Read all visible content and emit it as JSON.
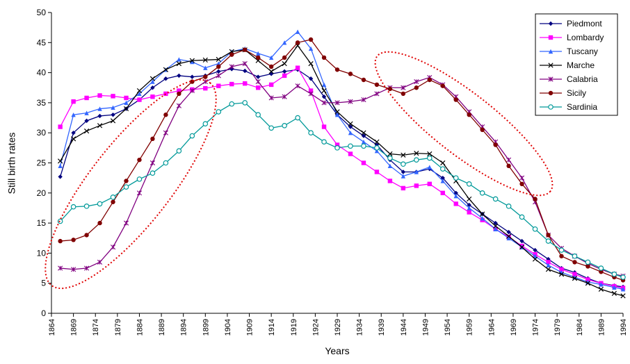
{
  "chart_data": {
    "type": "line",
    "x_label": "Years",
    "y_label": "Still birth rates",
    "x": [
      1866,
      1869,
      1872,
      1875,
      1878,
      1881,
      1884,
      1887,
      1890,
      1893,
      1896,
      1899,
      1902,
      1905,
      1908,
      1911,
      1914,
      1917,
      1920,
      1923,
      1926,
      1929,
      1932,
      1935,
      1938,
      1941,
      1944,
      1947,
      1950,
      1953,
      1956,
      1959,
      1962,
      1965,
      1968,
      1971,
      1974,
      1977,
      1980,
      1983,
      1986,
      1989,
      1992,
      1994
    ],
    "series": [
      {
        "name": "Piedmont",
        "color": "#000080",
        "marker": "diamond",
        "values": [
          22.7,
          30,
          32,
          32.8,
          33,
          34,
          35.5,
          37.5,
          39,
          39.5,
          39.3,
          39.5,
          40.2,
          40.6,
          40.3,
          39.3,
          39.8,
          40.2,
          40.5,
          39,
          36,
          33,
          31,
          29.5,
          28,
          25.5,
          23.5,
          23.5,
          24,
          22.5,
          20,
          18,
          16.5,
          15,
          13.5,
          12,
          10.5,
          9,
          7.5,
          6.8,
          5.8,
          5,
          4.6,
          4.4
        ]
      },
      {
        "name": "Lombardy",
        "color": "#ff00ff",
        "marker": "square",
        "values": [
          31,
          35.2,
          35.8,
          36.2,
          36.1,
          35.8,
          35.5,
          36,
          36.5,
          37,
          37.2,
          37.4,
          37.8,
          38.1,
          38.2,
          37.5,
          38,
          39.5,
          40.8,
          37,
          31,
          28,
          26.5,
          25,
          23.5,
          22,
          20.8,
          21.2,
          21.5,
          20,
          18.2,
          16.8,
          15.5,
          14,
          12.7,
          11.2,
          9.8,
          8.5,
          7.3,
          6.5,
          5.6,
          5,
          4.5,
          4.2
        ]
      },
      {
        "name": "Tuscany",
        "color": "#3366ff",
        "marker": "triangle",
        "values": [
          24.5,
          33,
          33.3,
          34,
          34.2,
          35,
          36.5,
          38.5,
          40.5,
          42.2,
          41.8,
          40.8,
          41.5,
          43.5,
          44,
          43.2,
          42.5,
          45,
          46.8,
          44,
          38,
          33,
          30,
          28.5,
          27,
          24.5,
          22.8,
          23.5,
          24.3,
          22,
          19.5,
          17.5,
          15.8,
          14,
          12.5,
          11,
          9.5,
          8,
          6.8,
          6,
          5.2,
          4.8,
          4.3,
          4
        ]
      },
      {
        "name": "Marche",
        "color": "#000000",
        "marker": "x",
        "values": [
          25.3,
          29,
          30.3,
          31.2,
          32,
          34,
          37,
          39,
          40.5,
          41.5,
          42,
          42.1,
          42.2,
          43.5,
          43.8,
          42,
          40.2,
          41.5,
          44.5,
          41.5,
          37,
          33.5,
          31.5,
          30,
          28.5,
          26.5,
          26.3,
          26.6,
          26.5,
          25,
          22,
          19,
          16.5,
          14.5,
          12.8,
          11,
          9,
          7.3,
          6.5,
          5.8,
          5,
          4,
          3.3,
          2.9
        ]
      },
      {
        "name": "Calabria",
        "color": "#800080",
        "marker": "star",
        "values": [
          7.5,
          7.3,
          7.5,
          8.5,
          11,
          15,
          20,
          25,
          30,
          34.5,
          37,
          38.5,
          39.5,
          41,
          41.5,
          38.5,
          35.8,
          36,
          37.8,
          36.5,
          35,
          35,
          35.2,
          35.5,
          36.5,
          37.5,
          37.5,
          38.5,
          39.2,
          38,
          36,
          33.5,
          31,
          28.5,
          25.5,
          22.5,
          18.5,
          13,
          10.8,
          9.5,
          8.3,
          7.3,
          6.5,
          6.2
        ]
      },
      {
        "name": "Sicily",
        "color": "#800000",
        "marker": "circle",
        "values": [
          12,
          12.2,
          13,
          15,
          18.5,
          22,
          25.5,
          29,
          33,
          36.5,
          38.5,
          39.3,
          41,
          43,
          43.8,
          42.5,
          41,
          42.5,
          45,
          45.5,
          42.5,
          40.5,
          39.8,
          38.8,
          38,
          37.3,
          36.5,
          37.5,
          38.8,
          37.8,
          35.5,
          33,
          30.5,
          28,
          24.5,
          21.5,
          19,
          13,
          9.5,
          8.5,
          7.8,
          6.9,
          6,
          5.5
        ]
      },
      {
        "name": "Sardinia",
        "color": "#009999",
        "marker": "open-circle",
        "values": [
          15.3,
          17.7,
          17.8,
          18.2,
          19.3,
          21,
          22.3,
          23.3,
          25,
          27,
          29.5,
          31.5,
          33.5,
          34.8,
          35,
          33,
          30.8,
          31.2,
          32.5,
          30,
          28.5,
          27.5,
          27.8,
          27.8,
          27.5,
          25.8,
          24.8,
          25.5,
          25.8,
          24,
          22.5,
          21.5,
          20,
          19,
          17.8,
          16,
          14,
          12,
          10.5,
          9.5,
          8.5,
          7.5,
          6.5,
          6
        ]
      }
    ],
    "xlim": [
      1864,
      1994
    ],
    "xticks": [
      1864,
      1869,
      1874,
      1879,
      1884,
      1889,
      1894,
      1899,
      1904,
      1909,
      1914,
      1919,
      1924,
      1929,
      1934,
      1939,
      1944,
      1949,
      1954,
      1959,
      1964,
      1969,
      1974,
      1979,
      1984,
      1989,
      1994
    ],
    "ylim": [
      0,
      50
    ],
    "yticks": [
      0,
      5,
      10,
      15,
      20,
      25,
      30,
      35,
      40,
      45,
      50
    ],
    "grid": false,
    "legend": "top-right"
  }
}
